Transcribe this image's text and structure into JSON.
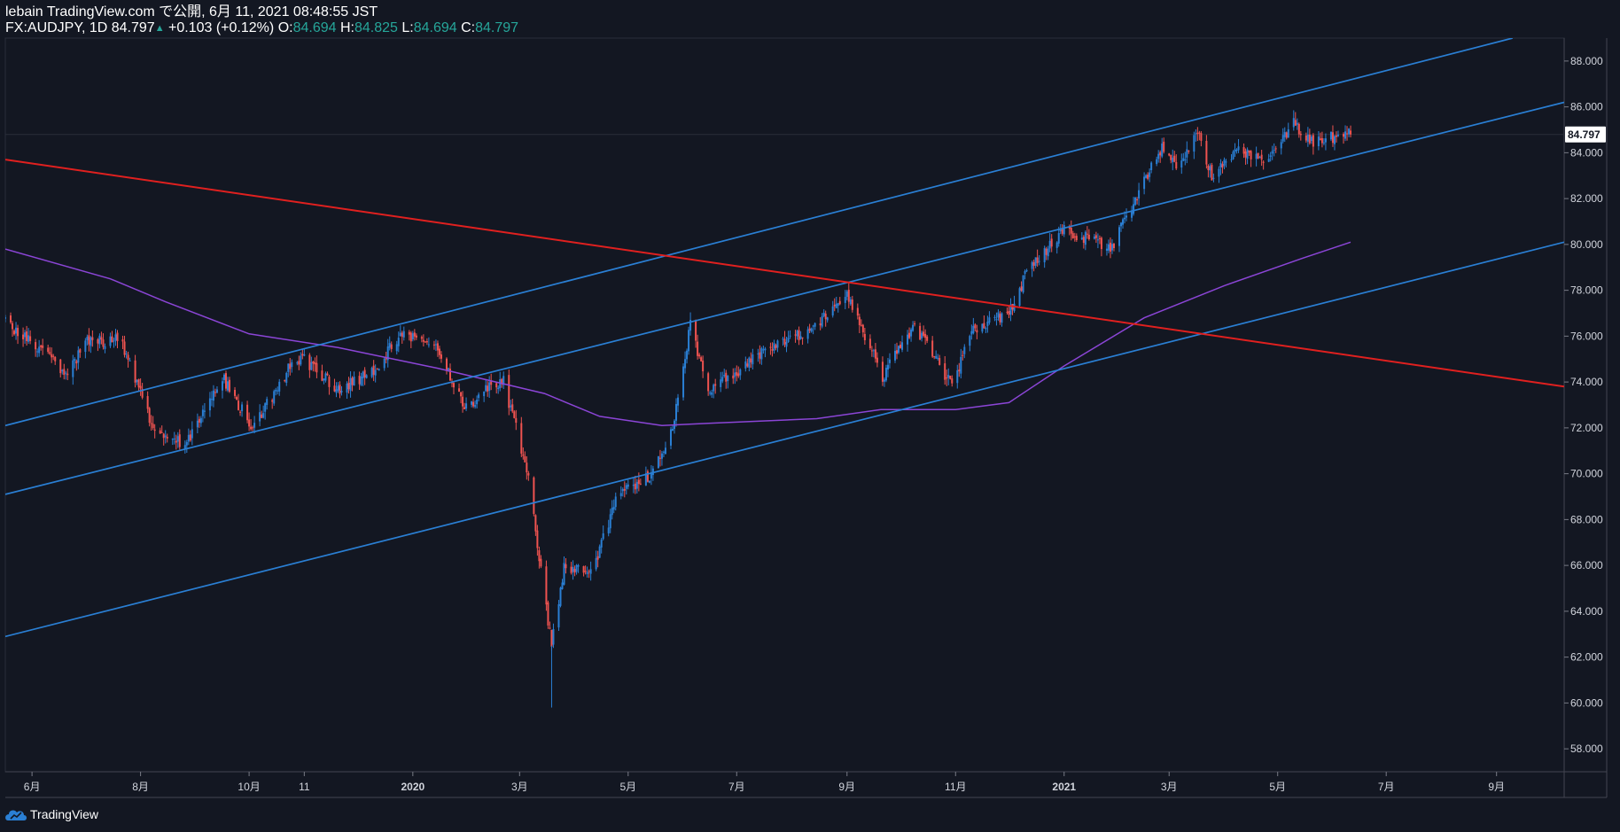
{
  "header": {
    "publish_line": "lebain TradingView.com で公開, 6月 11, 2021 08:48:55 JST",
    "symbol": "FX:AUDJPY, 1D",
    "last": "84.797",
    "change": "+0.103 (+0.12%)",
    "o_label": "O:",
    "o_value": "84.694",
    "h_label": "H:",
    "h_value": "84.825",
    "l_label": "L:",
    "l_value": "84.694",
    "c_label": "C:",
    "c_value": "84.797"
  },
  "footer": {
    "brand": "TradingView"
  },
  "colors": {
    "background": "#131722",
    "up": "#2a7fd4",
    "down": "#ef5350",
    "trendline_blue": "#2a7fd4",
    "trendline_red": "#e0201f",
    "ma": "#8b45d6",
    "axis_text": "#d1d4dc"
  },
  "chart_data": {
    "type": "candlestick",
    "symbol": "FX:AUDJPY",
    "interval": "1D",
    "ylim": [
      57,
      89
    ],
    "y_ticks": [
      "88.000",
      "86.000",
      "84.000",
      "82.000",
      "80.000",
      "78.000",
      "76.000",
      "74.000",
      "72.000",
      "70.000",
      "68.000",
      "66.000",
      "64.000",
      "62.000",
      "60.000",
      "58.000"
    ],
    "x_range": [
      "2019-05-17",
      "2021-10-09"
    ],
    "x_ticks": [
      {
        "label": "6月",
        "date": "2019-06-01"
      },
      {
        "label": "8月",
        "date": "2019-08-01"
      },
      {
        "label": "10月",
        "date": "2019-10-01"
      },
      {
        "label": "11",
        "date": "2019-11-01"
      },
      {
        "label": "2020",
        "date": "2020-01-01"
      },
      {
        "label": "3月",
        "date": "2020-03-01"
      },
      {
        "label": "5月",
        "date": "2020-05-01"
      },
      {
        "label": "7月",
        "date": "2020-07-01"
      },
      {
        "label": "9月",
        "date": "2020-09-01"
      },
      {
        "label": "11月",
        "date": "2020-11-01"
      },
      {
        "label": "2021",
        "date": "2021-01-01"
      },
      {
        "label": "3月",
        "date": "2021-03-01"
      },
      {
        "label": "5月",
        "date": "2021-05-01"
      },
      {
        "label": "7月",
        "date": "2021-07-01"
      },
      {
        "label": "9月",
        "date": "2021-09-01"
      }
    ],
    "last_price": 84.797,
    "price_path": [
      [
        "2019-05-17",
        76.6
      ],
      [
        "2019-06-01",
        75.8
      ],
      [
        "2019-06-20",
        74.3
      ],
      [
        "2019-07-01",
        75.7
      ],
      [
        "2019-07-20",
        75.9
      ],
      [
        "2019-08-01",
        73.6
      ],
      [
        "2019-08-08",
        72.0
      ],
      [
        "2019-08-26",
        71.2
      ],
      [
        "2019-09-10",
        73.5
      ],
      [
        "2019-09-16",
        74.2
      ],
      [
        "2019-10-03",
        72.0
      ],
      [
        "2019-10-25",
        74.8
      ],
      [
        "2019-11-01",
        75.0
      ],
      [
        "2019-11-20",
        73.6
      ],
      [
        "2019-12-10",
        74.5
      ],
      [
        "2019-12-26",
        76.2
      ],
      [
        "2020-01-16",
        75.3
      ],
      [
        "2020-01-31",
        72.8
      ],
      [
        "2020-02-10",
        73.6
      ],
      [
        "2020-02-21",
        74.0
      ],
      [
        "2020-03-05",
        70.2
      ],
      [
        "2020-03-10",
        67.5
      ],
      [
        "2020-03-19",
        62.5
      ],
      [
        "2020-03-26",
        66.0
      ],
      [
        "2020-04-10",
        65.6
      ],
      [
        "2020-04-25",
        69.0
      ],
      [
        "2020-05-12",
        69.8
      ],
      [
        "2020-05-26",
        72.0
      ],
      [
        "2020-06-05",
        76.5
      ],
      [
        "2020-06-15",
        73.5
      ],
      [
        "2020-06-30",
        74.4
      ],
      [
        "2020-07-20",
        75.6
      ],
      [
        "2020-08-10",
        76.2
      ],
      [
        "2020-09-01",
        77.9
      ],
      [
        "2020-09-21",
        74.2
      ],
      [
        "2020-10-09",
        76.5
      ],
      [
        "2020-10-30",
        73.8
      ],
      [
        "2020-11-11",
        76.3
      ],
      [
        "2020-12-01",
        77.0
      ],
      [
        "2020-12-10",
        78.6
      ],
      [
        "2020-12-31",
        80.6
      ],
      [
        "2021-01-12",
        80.3
      ],
      [
        "2021-01-28",
        79.9
      ],
      [
        "2021-02-15",
        82.8
      ],
      [
        "2021-02-25",
        84.2
      ],
      [
        "2021-03-05",
        83.3
      ],
      [
        "2021-03-18",
        84.9
      ],
      [
        "2021-03-25",
        82.9
      ],
      [
        "2021-04-08",
        84.2
      ],
      [
        "2021-04-23",
        83.5
      ],
      [
        "2021-05-10",
        85.3
      ],
      [
        "2021-05-20",
        84.5
      ],
      [
        "2021-06-01",
        84.7
      ],
      [
        "2021-06-11",
        84.797
      ]
    ],
    "moving_average": [
      [
        "2019-05-17",
        79.8
      ],
      [
        "2019-07-15",
        78.5
      ],
      [
        "2019-08-15",
        77.5
      ],
      [
        "2019-10-01",
        76.1
      ],
      [
        "2019-11-20",
        75.5
      ],
      [
        "2020-01-15",
        74.6
      ],
      [
        "2020-03-15",
        73.5
      ],
      [
        "2020-04-15",
        72.5
      ],
      [
        "2020-05-20",
        72.1
      ],
      [
        "2020-06-15",
        72.2
      ],
      [
        "2020-08-15",
        72.4
      ],
      [
        "2020-09-20",
        72.8
      ],
      [
        "2020-11-01",
        72.8
      ],
      [
        "2020-12-01",
        73.1
      ],
      [
        "2021-01-01",
        74.7
      ],
      [
        "2021-02-15",
        76.8
      ],
      [
        "2021-04-01",
        78.2
      ],
      [
        "2021-05-15",
        79.4
      ],
      [
        "2021-06-11",
        80.1
      ]
    ],
    "trendlines": [
      {
        "color": "blue",
        "from": [
          "2019-05-17",
          72.1
        ],
        "to": [
          "2021-09-10",
          89.0
        ]
      },
      {
        "color": "blue",
        "from": [
          "2019-05-17",
          69.1
        ],
        "to": [
          "2021-10-09",
          86.2
        ]
      },
      {
        "color": "blue",
        "from": [
          "2019-05-17",
          62.9
        ],
        "to": [
          "2021-10-09",
          80.1
        ]
      },
      {
        "color": "red",
        "from": [
          "2019-05-17",
          83.7
        ],
        "to": [
          "2021-10-09",
          73.8
        ]
      }
    ]
  }
}
